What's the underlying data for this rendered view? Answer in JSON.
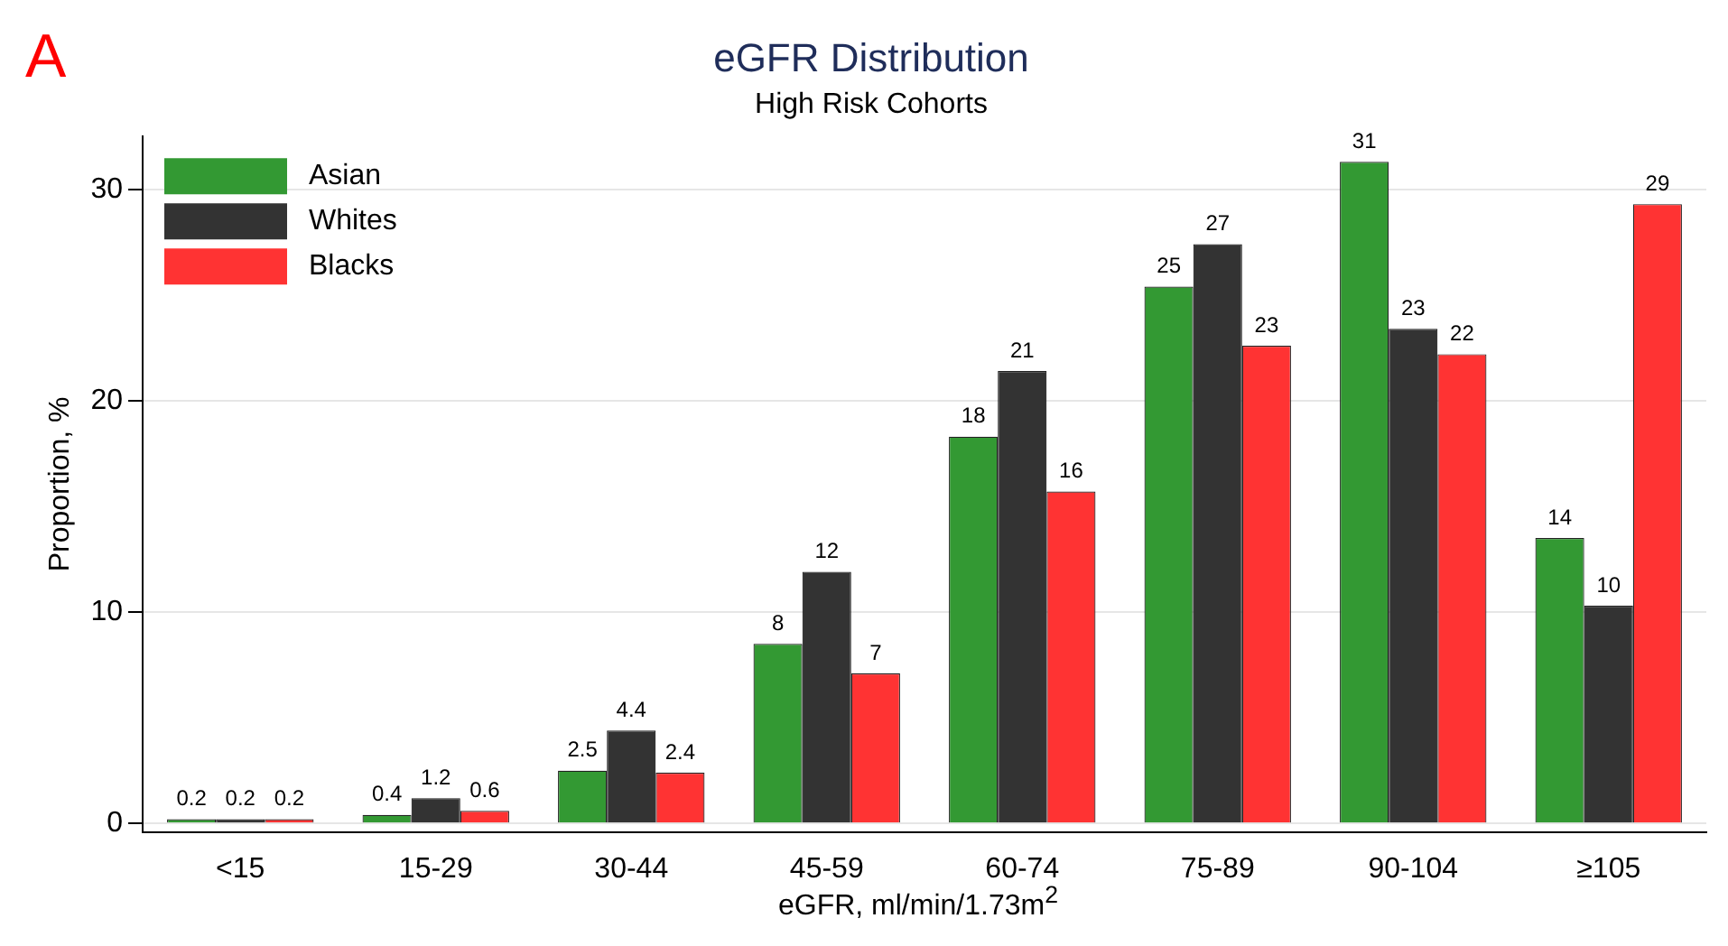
{
  "chart_data": {
    "type": "bar",
    "title": "eGFR Distribution",
    "subtitle": "High Risk Cohorts",
    "xlabel": "eGFR, ml/min/1.73m$^{2}$",
    "ylabel": "Proportion, %",
    "annotations": [
      "A"
    ],
    "categories": [
      "<15",
      "15-29",
      "30-44",
      "45-59",
      "60-74",
      "75-89",
      "90-104",
      "≥105"
    ],
    "series": [
      {
        "name": "Asian",
        "color": "#339933",
        "values": [
          0.2,
          0.4,
          2.5,
          8.5,
          18.3,
          25.4,
          31.3,
          13.5
        ],
        "value_labels": [
          "0.2",
          "0.4",
          "2.5",
          "8",
          "18",
          "25",
          "31",
          "14"
        ]
      },
      {
        "name": "Whites",
        "color": "#333333",
        "values": [
          0.2,
          1.2,
          4.4,
          11.9,
          21.4,
          27.4,
          23.4,
          10.3
        ],
        "value_labels": [
          "0.2",
          "1.2",
          "4.4",
          "12",
          "21",
          "27",
          "23",
          "10"
        ]
      },
      {
        "name": "Blacks",
        "color": "#ff3333",
        "values": [
          0.2,
          0.6,
          2.4,
          7.1,
          15.7,
          22.6,
          22.2,
          29.3
        ],
        "value_labels": [
          "0.2",
          "0.6",
          "2.4",
          "7",
          "16",
          "23",
          "22",
          "29"
        ]
      }
    ],
    "ylim": [
      -0.4,
      32.5
    ],
    "yticks": [
      0,
      10,
      20,
      30
    ],
    "grid": "y",
    "legend": "top left"
  }
}
